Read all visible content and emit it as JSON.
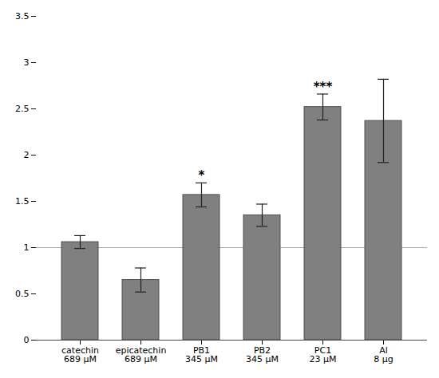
{
  "chart_data": {
    "type": "bar",
    "categories": [
      "catechin\n689 μM",
      "epicatechin\n689 μM",
      "PB1\n345 μM",
      "PB2\n345 μM",
      "PC1\n23 μM",
      "Al\n8 μg"
    ],
    "values": [
      1.06,
      0.65,
      1.57,
      1.35,
      2.52,
      2.37
    ],
    "errors": [
      0.07,
      0.13,
      0.13,
      0.12,
      0.14,
      0.45
    ],
    "error_color": "#222222",
    "color": "#808080",
    "edge_color": "#444444",
    "annotations": [
      null,
      null,
      "*",
      null,
      "***",
      null
    ],
    "reference_line": {
      "y": 1,
      "color": "#aaaaaa"
    },
    "ylim": [
      0,
      3.5
    ],
    "yticks": [
      0,
      0.5,
      1,
      1.5,
      2,
      2.5,
      3,
      3.5
    ],
    "grid": false
  }
}
